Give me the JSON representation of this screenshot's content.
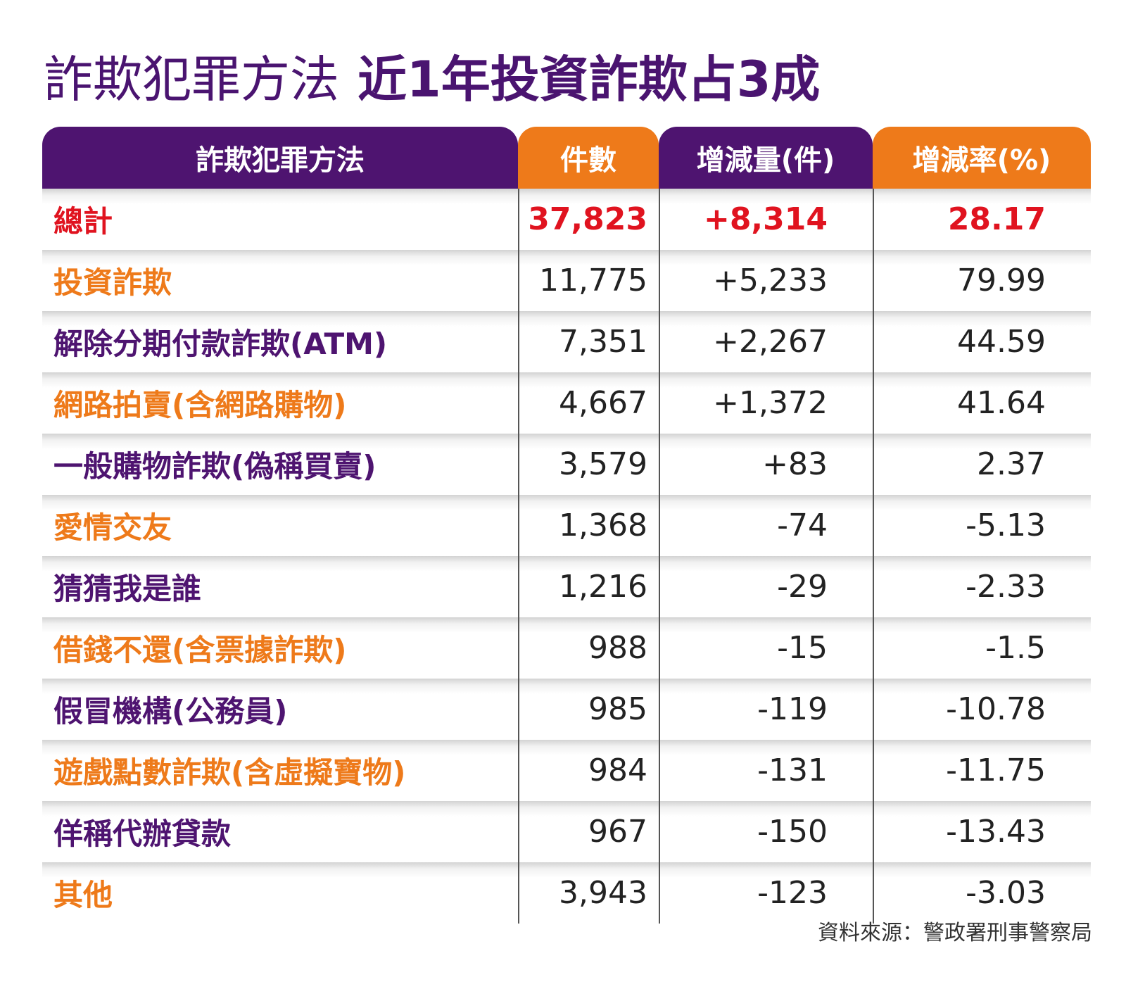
{
  "title": {
    "part1": "詐欺犯罪方法",
    "part2": "近1年投資詐欺占3成"
  },
  "colors": {
    "purple": "#4e1470",
    "orange": "#ee7a1a",
    "total_red": "#e0131f"
  },
  "chart_data": {
    "type": "table",
    "columns": [
      "詐欺犯罪方法",
      "件數",
      "增減量(件)",
      "增減率(%)"
    ],
    "rows": [
      {
        "method": "總計",
        "count": "37,823",
        "change": "+8,314",
        "rate": "28.17",
        "style": "total"
      },
      {
        "method": "投資詐欺",
        "count": "11,775",
        "change": "+5,233",
        "rate": "79.99",
        "style": "orange"
      },
      {
        "method": "解除分期付款詐欺(ATM)",
        "count": "7,351",
        "change": "+2,267",
        "rate": "44.59",
        "style": "purple"
      },
      {
        "method": "網路拍賣(含網路購物)",
        "count": "4,667",
        "change": "+1,372",
        "rate": "41.64",
        "style": "orange"
      },
      {
        "method": "一般購物詐欺(偽稱買賣)",
        "count": "3,579",
        "change": "+83",
        "rate": "2.37",
        "style": "purple"
      },
      {
        "method": "愛情交友",
        "count": "1,368",
        "change": "-74",
        "rate": "-5.13",
        "style": "orange"
      },
      {
        "method": "猜猜我是誰",
        "count": "1,216",
        "change": "-29",
        "rate": "-2.33",
        "style": "purple"
      },
      {
        "method": "借錢不還(含票據詐欺)",
        "count": "988",
        "change": "-15",
        "rate": "-1.5",
        "style": "orange"
      },
      {
        "method": "假冒機構(公務員)",
        "count": "985",
        "change": "-119",
        "rate": "-10.78",
        "style": "purple"
      },
      {
        "method": "遊戲點數詐欺(含虛擬寶物)",
        "count": "984",
        "change": "-131",
        "rate": "-11.75",
        "style": "orange"
      },
      {
        "method": "佯稱代辦貸款",
        "count": "967",
        "change": "-150",
        "rate": "-13.43",
        "style": "purple"
      },
      {
        "method": "其他",
        "count": "3,943",
        "change": "-123",
        "rate": "-3.03",
        "style": "orange"
      }
    ]
  },
  "source": "資料來源：警政署刑事警察局"
}
